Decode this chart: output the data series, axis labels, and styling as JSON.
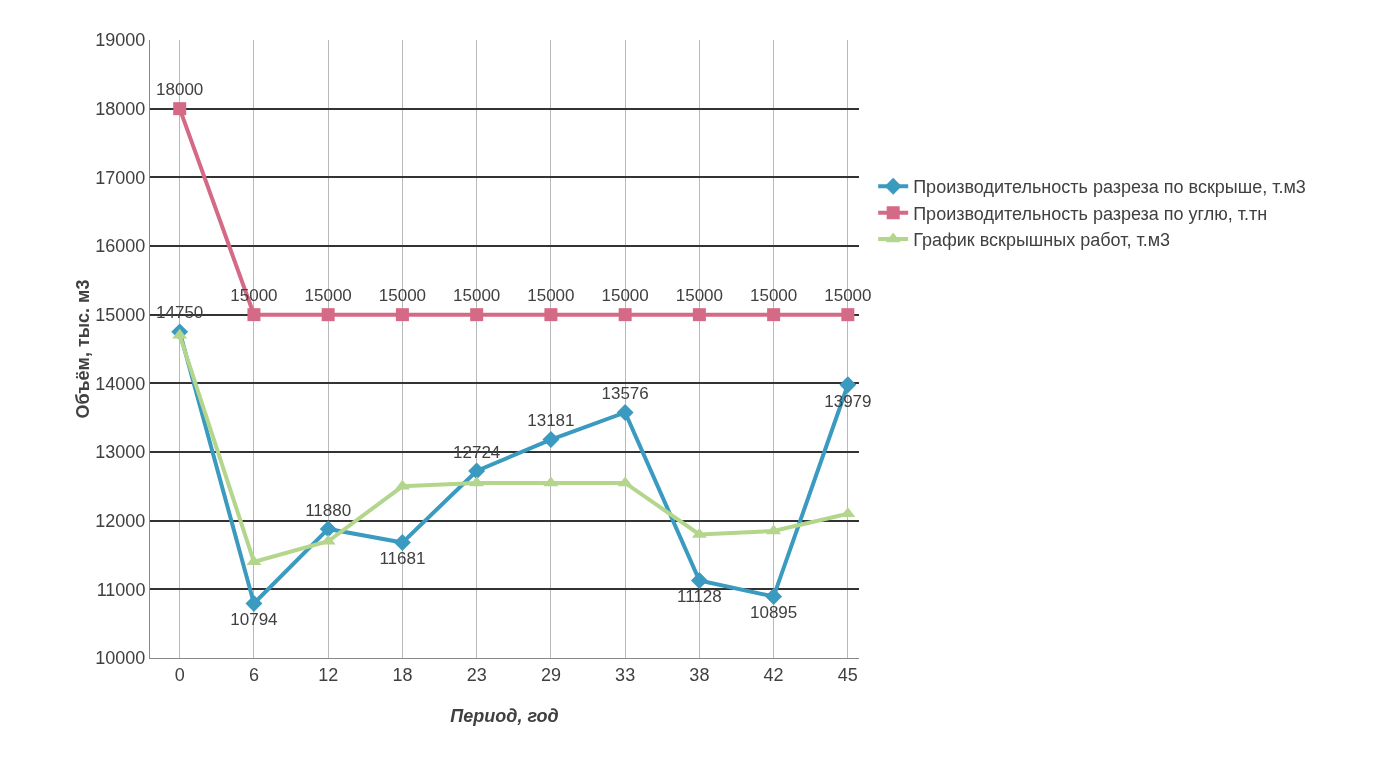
{
  "chart_data": {
    "type": "line",
    "xlabel": "Период, год",
    "ylabel": "Объём, тыс. м3",
    "categories": [
      "0",
      "6",
      "12",
      "18",
      "23",
      "29",
      "33",
      "38",
      "42",
      "45"
    ],
    "ylim": [
      10000,
      19000
    ],
    "yticks": [
      10000,
      11000,
      12000,
      13000,
      14000,
      15000,
      16000,
      17000,
      18000,
      19000
    ],
    "grid": true,
    "legend": "right",
    "line_style": "solid",
    "series": [
      {
        "name": "Производительность разреза по вскрыше, т.м3",
        "color": "#3a9ac0",
        "marker": "diamond",
        "values": [
          14750,
          10794,
          11880,
          11681,
          12724,
          13181,
          13576,
          11128,
          10895,
          13979
        ],
        "value_labels": [
          "14750",
          "10794",
          "11880",
          "11681",
          "12724",
          "13181",
          "13576",
          "11128",
          "10895",
          "13979"
        ]
      },
      {
        "name": "Производительность разреза по углю, т.тн",
        "color": "#d46a85",
        "marker": "square",
        "values": [
          18000,
          15000,
          15000,
          15000,
          15000,
          15000,
          15000,
          15000,
          15000,
          15000
        ],
        "value_labels": [
          "18000",
          "15000",
          "15000",
          "15000",
          "15000",
          "15000",
          "15000",
          "15000",
          "15000",
          "15000"
        ]
      },
      {
        "name": "График вскрышных работ, т.м3",
        "color": "#b3d68c",
        "marker": "triangle",
        "values": [
          14700,
          11400,
          11700,
          12500,
          12550,
          12550,
          12550,
          11800,
          11850,
          12100
        ]
      }
    ]
  }
}
